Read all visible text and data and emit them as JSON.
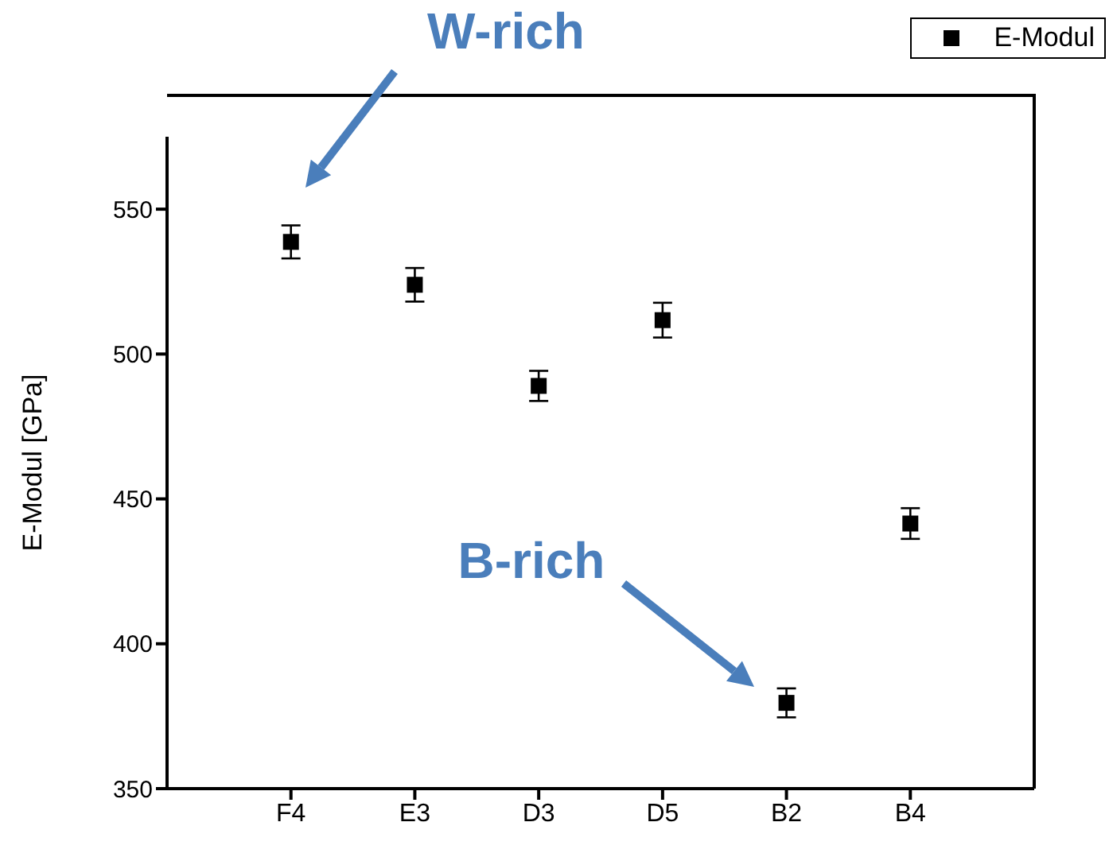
{
  "chart_data": {
    "type": "scatter",
    "ylabel": "E-Modul [GPa]",
    "categories": [
      "F4",
      "E3",
      "D3",
      "D5",
      "B2",
      "B4"
    ],
    "series": [
      {
        "name": "E-Modul",
        "color": "#000000",
        "values": [
          538.7,
          523.9,
          489,
          511.7,
          379.6,
          441.5
        ],
        "errors": [
          5.7,
          5.8,
          5.2,
          6,
          5,
          5.3
        ]
      }
    ],
    "ylim": [
      350,
      575
    ],
    "yticks": [
      350,
      400,
      450,
      500,
      550
    ],
    "marker": "square",
    "grid": false,
    "legend": "top right",
    "annotations": [
      "W-rich",
      "B-rich"
    ]
  }
}
